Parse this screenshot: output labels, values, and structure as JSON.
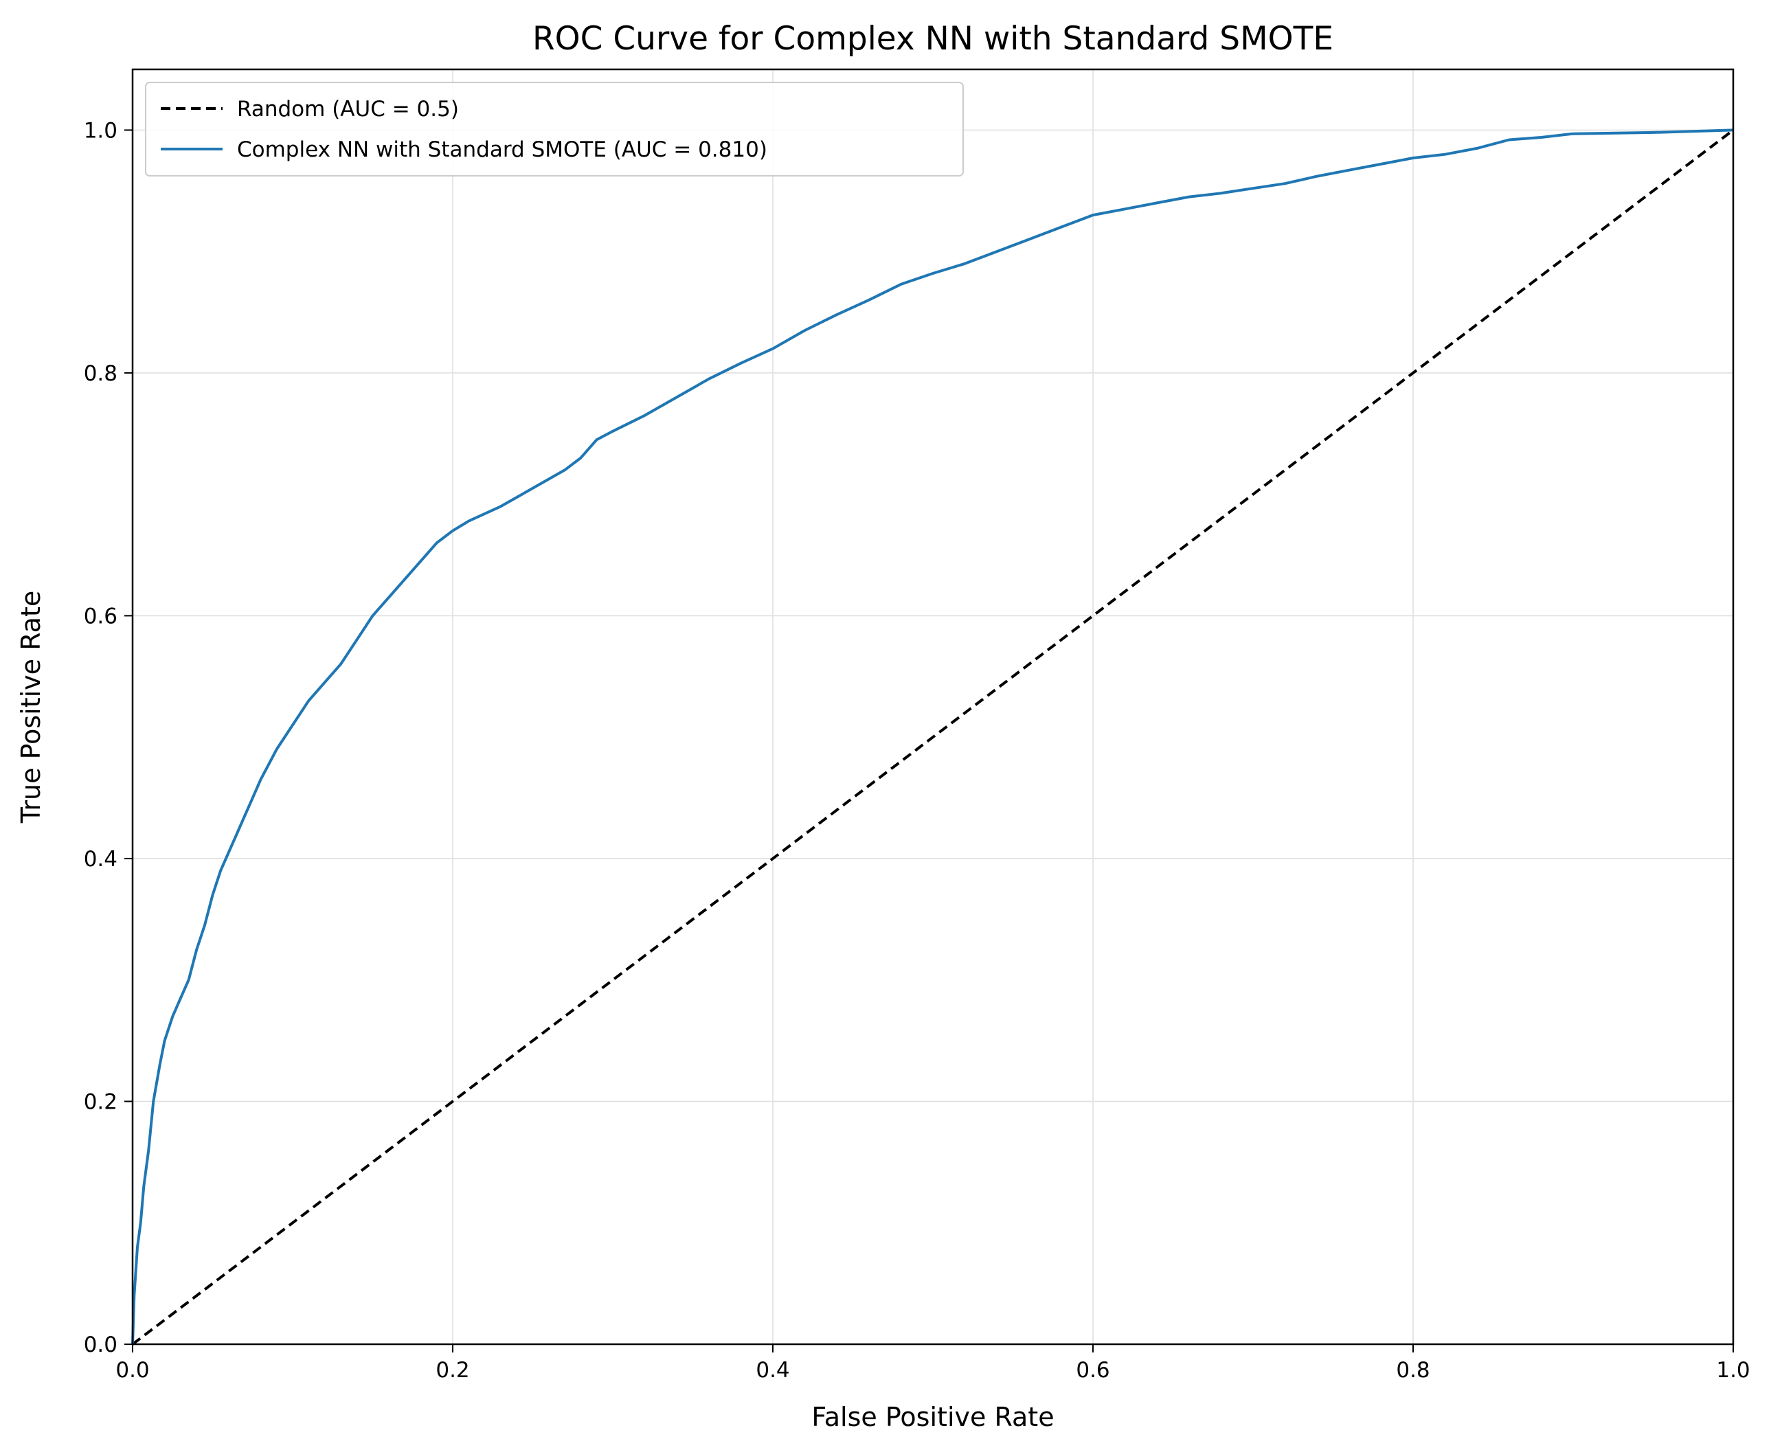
{
  "chart_data": {
    "type": "line",
    "title": "ROC Curve for Complex NN with Standard SMOTE",
    "xlabel": "False Positive Rate",
    "ylabel": "True Positive Rate",
    "xlim": [
      0.0,
      1.0
    ],
    "ylim": [
      0.0,
      1.05
    ],
    "grid": true,
    "legend_position": "top-left",
    "x_ticks": [
      "0.0",
      "0.2",
      "0.4",
      "0.6",
      "0.8",
      "1.0"
    ],
    "y_ticks": [
      "0.0",
      "0.2",
      "0.4",
      "0.6",
      "0.8",
      "1.0"
    ],
    "series": [
      {
        "name": "Random (AUC = 0.5)",
        "style": "dashed",
        "color": "#000000",
        "points": [
          [
            0.0,
            0.0
          ],
          [
            1.0,
            1.0
          ]
        ]
      },
      {
        "name": "Complex NN with Standard SMOTE (AUC = 0.810)",
        "style": "solid",
        "color": "#1f77b4",
        "points": [
          [
            0.0,
            0.0
          ],
          [
            0.001,
            0.04
          ],
          [
            0.003,
            0.08
          ],
          [
            0.005,
            0.1
          ],
          [
            0.007,
            0.13
          ],
          [
            0.01,
            0.16
          ],
          [
            0.013,
            0.2
          ],
          [
            0.017,
            0.23
          ],
          [
            0.02,
            0.25
          ],
          [
            0.025,
            0.27
          ],
          [
            0.03,
            0.285
          ],
          [
            0.035,
            0.3
          ],
          [
            0.04,
            0.325
          ],
          [
            0.045,
            0.345
          ],
          [
            0.05,
            0.37
          ],
          [
            0.055,
            0.39
          ],
          [
            0.06,
            0.405
          ],
          [
            0.065,
            0.42
          ],
          [
            0.07,
            0.435
          ],
          [
            0.075,
            0.45
          ],
          [
            0.08,
            0.465
          ],
          [
            0.09,
            0.49
          ],
          [
            0.1,
            0.51
          ],
          [
            0.11,
            0.53
          ],
          [
            0.12,
            0.545
          ],
          [
            0.13,
            0.56
          ],
          [
            0.14,
            0.58
          ],
          [
            0.15,
            0.6
          ],
          [
            0.16,
            0.615
          ],
          [
            0.17,
            0.63
          ],
          [
            0.18,
            0.645
          ],
          [
            0.19,
            0.66
          ],
          [
            0.2,
            0.67
          ],
          [
            0.21,
            0.678
          ],
          [
            0.22,
            0.684
          ],
          [
            0.23,
            0.69
          ],
          [
            0.25,
            0.705
          ],
          [
            0.27,
            0.72
          ],
          [
            0.28,
            0.73
          ],
          [
            0.29,
            0.745
          ],
          [
            0.3,
            0.752
          ],
          [
            0.32,
            0.765
          ],
          [
            0.34,
            0.78
          ],
          [
            0.36,
            0.795
          ],
          [
            0.38,
            0.808
          ],
          [
            0.4,
            0.82
          ],
          [
            0.42,
            0.835
          ],
          [
            0.44,
            0.848
          ],
          [
            0.46,
            0.86
          ],
          [
            0.48,
            0.873
          ],
          [
            0.5,
            0.882
          ],
          [
            0.52,
            0.89
          ],
          [
            0.54,
            0.9
          ],
          [
            0.56,
            0.91
          ],
          [
            0.58,
            0.92
          ],
          [
            0.6,
            0.93
          ],
          [
            0.62,
            0.935
          ],
          [
            0.64,
            0.94
          ],
          [
            0.66,
            0.945
          ],
          [
            0.68,
            0.948
          ],
          [
            0.7,
            0.952
          ],
          [
            0.72,
            0.956
          ],
          [
            0.74,
            0.962
          ],
          [
            0.76,
            0.967
          ],
          [
            0.78,
            0.972
          ],
          [
            0.8,
            0.977
          ],
          [
            0.82,
            0.98
          ],
          [
            0.84,
            0.985
          ],
          [
            0.86,
            0.992
          ],
          [
            0.88,
            0.994
          ],
          [
            0.9,
            0.997
          ],
          [
            0.95,
            0.998
          ],
          [
            1.0,
            1.0
          ]
        ]
      }
    ]
  }
}
